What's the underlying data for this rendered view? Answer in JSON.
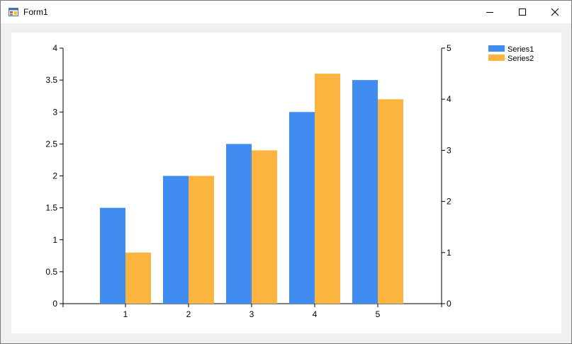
{
  "window": {
    "title": "Form1",
    "icons": {
      "app": "form-app-icon",
      "minimize": "minimize-icon",
      "maximize": "maximize-icon",
      "close": "close-icon"
    }
  },
  "chart_data": {
    "type": "bar",
    "categories": [
      "1",
      "2",
      "3",
      "4",
      "5"
    ],
    "series": [
      {
        "name": "Series1",
        "color": "#418cf0",
        "axis": "left",
        "values": [
          1.5,
          2.0,
          2.5,
          3.0,
          3.5
        ]
      },
      {
        "name": "Series2",
        "color": "#fcb441",
        "axis": "right",
        "values": [
          1.0,
          2.5,
          3.0,
          4.5,
          4.0
        ]
      }
    ],
    "y_left": {
      "min": 0,
      "max": 4,
      "ticks": [
        "0",
        "0.5",
        "1",
        "1.5",
        "2",
        "2.5",
        "3",
        "3.5",
        "4"
      ]
    },
    "y_right": {
      "min": 0,
      "max": 5,
      "ticks": [
        "0",
        "1",
        "2",
        "3",
        "4",
        "5"
      ]
    },
    "title": "",
    "xlabel": "",
    "ylabel": "",
    "grid": false,
    "legend": "top-right"
  }
}
